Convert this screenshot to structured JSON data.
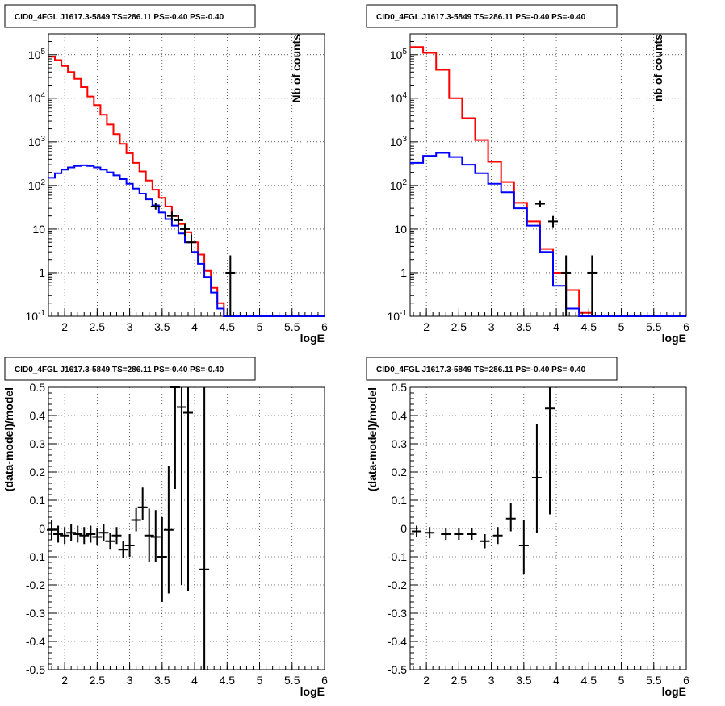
{
  "chart_data": [
    {
      "type": "step",
      "title": "CID0_4FGL J1617.3-5849 TS=286.11 PS=-0.40 PS=-0.40",
      "xlabel": "logE",
      "ylabel": "Nb of counts",
      "xlim": [
        1.75,
        6.0
      ],
      "ylim": [
        0.1,
        300000
      ],
      "yscale": "log",
      "grid": true,
      "xticks": [
        "2",
        "2.5",
        "3",
        "3.5",
        "4",
        "4.5",
        "5",
        "5.5",
        "6"
      ],
      "yticks": [
        "10^-1",
        "1",
        "10",
        "10^2",
        "10^3",
        "10^4",
        "10^5"
      ],
      "bin_edges": [
        1.75,
        1.85,
        1.95,
        2.05,
        2.15,
        2.25,
        2.35,
        2.45,
        2.55,
        2.65,
        2.75,
        2.85,
        2.95,
        3.05,
        3.15,
        3.25,
        3.35,
        3.45,
        3.55,
        3.65,
        3.75,
        3.85,
        3.95,
        4.05,
        4.15,
        4.25,
        4.35,
        4.45,
        4.55,
        4.65,
        4.75,
        4.85,
        4.95,
        5.05,
        5.15,
        5.25,
        5.35,
        5.45,
        5.55,
        5.65,
        5.75,
        5.85,
        5.95,
        6.0
      ],
      "series": [
        {
          "color": "#ff0000",
          "values": [
            90000,
            75000,
            55000,
            40000,
            28000,
            18000,
            11000,
            7000,
            4200,
            2500,
            1500,
            900,
            550,
            330,
            210,
            130,
            80,
            52,
            33,
            20,
            13,
            8.5,
            5,
            2.6,
            1.1,
            0.45,
            0.2,
            0.1,
            0.1,
            0.1,
            0.1,
            0.1,
            0.1,
            0.1,
            0.1,
            0.1,
            0.1,
            0.1,
            0.1,
            0.1,
            0.1,
            0.1,
            0.1
          ]
        },
        {
          "color": "#0000ff",
          "values": [
            150,
            190,
            230,
            260,
            280,
            290,
            280,
            260,
            230,
            200,
            170,
            140,
            110,
            85,
            65,
            48,
            35,
            24,
            17,
            12,
            8,
            5,
            3,
            1.6,
            0.8,
            0.35,
            0.15,
            0.1,
            0.1,
            0.1,
            0.1,
            0.1,
            0.1,
            0.1,
            0.1,
            0.1,
            0.1,
            0.1,
            0.1,
            0.1,
            0.1,
            0.1,
            0.1
          ]
        }
      ],
      "points": [
        {
          "x": 3.4,
          "y": 33,
          "ylo": 28,
          "yhi": 39
        },
        {
          "x": 3.65,
          "y": 20,
          "ylo": 16,
          "yhi": 25
        },
        {
          "x": 3.75,
          "y": 16,
          "ylo": 12,
          "yhi": 21
        },
        {
          "x": 3.85,
          "y": 10,
          "ylo": 7,
          "yhi": 13
        },
        {
          "x": 3.95,
          "y": 5,
          "ylo": 3,
          "yhi": 7.5
        },
        {
          "x": 4.55,
          "y": 1,
          "ylo": 0.1,
          "yhi": 2.5
        }
      ]
    },
    {
      "type": "step",
      "title": "CID0_4FGL J1617.3-5849 TS=286.11 PS=-0.40 PS=-0.40",
      "xlabel": "logE",
      "ylabel": "nb of counts",
      "xlim": [
        1.75,
        6.0
      ],
      "ylim": [
        0.1,
        300000
      ],
      "yscale": "log",
      "grid": true,
      "xticks": [
        "2",
        "2.5",
        "3",
        "3.5",
        "4",
        "4.5",
        "5",
        "5.5",
        "6"
      ],
      "yticks": [
        "10^-1",
        "1",
        "10",
        "10^2",
        "10^3",
        "10^4",
        "10^5"
      ],
      "bin_edges": [
        1.75,
        1.95,
        2.15,
        2.35,
        2.55,
        2.75,
        2.95,
        3.15,
        3.35,
        3.55,
        3.75,
        3.95,
        4.15,
        4.35,
        4.55,
        4.75,
        4.95,
        5.15,
        5.35,
        5.55,
        5.75,
        5.95,
        6.0
      ],
      "series": [
        {
          "color": "#ff0000",
          "values": [
            150000,
            110000,
            45000,
            10000,
            3500,
            1100,
            350,
            120,
            40,
            15,
            3.5,
            1.0,
            0.4,
            0.12,
            0.1,
            0.1,
            0.1,
            0.1,
            0.1,
            0.1,
            0.1,
            0.1
          ]
        },
        {
          "color": "#0000ff",
          "values": [
            330,
            480,
            560,
            450,
            300,
            190,
            110,
            70,
            30,
            12,
            3,
            0.5,
            0.15,
            0.1,
            0.1,
            0.1,
            0.1,
            0.1,
            0.1,
            0.1,
            0.1,
            0.1
          ]
        }
      ],
      "points": [
        {
          "x": 3.75,
          "y": 38,
          "ylo": 32,
          "yhi": 45
        },
        {
          "x": 3.95,
          "y": 15,
          "ylo": 11,
          "yhi": 20
        },
        {
          "x": 4.15,
          "y": 1,
          "ylo": 0.1,
          "yhi": 2.5
        },
        {
          "x": 4.55,
          "y": 1,
          "ylo": 0.1,
          "yhi": 2.5
        }
      ]
    },
    {
      "type": "scatter",
      "title": "CID0_4FGL J1617.3-5849 TS=286.11 PS=-0.40 PS=-0.40",
      "xlabel": "logE",
      "ylabel": "(data-model)/model",
      "xlim": [
        1.75,
        6.0
      ],
      "ylim": [
        -0.5,
        0.5
      ],
      "grid": true,
      "xticks": [
        "2",
        "2.5",
        "3",
        "3.5",
        "4",
        "4.5",
        "5",
        "5.5",
        "6"
      ],
      "yticks": [
        "-0.5",
        "-0.4",
        "-0.3",
        "-0.2",
        "-0.1",
        "0",
        "0.1",
        "0.2",
        "0.3",
        "0.4",
        "0.5"
      ],
      "points": [
        {
          "x": 1.8,
          "y": -0.005,
          "ylo": -0.04,
          "yhi": 0.03
        },
        {
          "x": 1.9,
          "y": -0.02,
          "ylo": -0.05,
          "yhi": 0.01
        },
        {
          "x": 2.0,
          "y": -0.025,
          "ylo": -0.055,
          "yhi": 0.005
        },
        {
          "x": 2.1,
          "y": -0.015,
          "ylo": -0.045,
          "yhi": 0.015
        },
        {
          "x": 2.2,
          "y": -0.02,
          "ylo": -0.05,
          "yhi": 0.01
        },
        {
          "x": 2.3,
          "y": -0.025,
          "ylo": -0.055,
          "yhi": 0.005
        },
        {
          "x": 2.4,
          "y": -0.02,
          "ylo": -0.05,
          "yhi": 0.01
        },
        {
          "x": 2.5,
          "y": -0.03,
          "ylo": -0.06,
          "yhi": 0.0
        },
        {
          "x": 2.6,
          "y": -0.015,
          "ylo": -0.045,
          "yhi": 0.015
        },
        {
          "x": 2.7,
          "y": -0.045,
          "ylo": -0.075,
          "yhi": -0.015
        },
        {
          "x": 2.8,
          "y": -0.025,
          "ylo": -0.055,
          "yhi": 0.005
        },
        {
          "x": 2.9,
          "y": -0.075,
          "ylo": -0.105,
          "yhi": -0.045
        },
        {
          "x": 3.0,
          "y": -0.06,
          "ylo": -0.1,
          "yhi": -0.02
        },
        {
          "x": 3.1,
          "y": 0.03,
          "ylo": -0.01,
          "yhi": 0.075
        },
        {
          "x": 3.2,
          "y": 0.075,
          "ylo": 0.03,
          "yhi": 0.145
        },
        {
          "x": 3.3,
          "y": -0.025,
          "ylo": -0.12,
          "yhi": 0.07
        },
        {
          "x": 3.4,
          "y": -0.03,
          "ylo": -0.12,
          "yhi": 0.065
        },
        {
          "x": 3.5,
          "y": -0.1,
          "ylo": -0.26,
          "yhi": 0.04
        },
        {
          "x": 3.6,
          "y": -0.005,
          "ylo": -0.23,
          "yhi": 0.22
        },
        {
          "x": 3.7,
          "y": 0.5,
          "ylo": 0.14,
          "yhi": 0.5
        },
        {
          "x": 3.8,
          "y": 0.43,
          "ylo": -0.2,
          "yhi": 0.5
        },
        {
          "x": 3.9,
          "y": 0.41,
          "ylo": -0.22,
          "yhi": 0.5
        },
        {
          "x": 4.15,
          "y": -0.145,
          "ylo": -0.5,
          "yhi": 0.5
        }
      ]
    },
    {
      "type": "scatter",
      "title": "CID0_4FGL J1617.3-5849 TS=286.11 PS=-0.40 PS=-0.40",
      "xlabel": "logE",
      "ylabel": "(data-model)/model",
      "xlim": [
        1.75,
        6.0
      ],
      "ylim": [
        -0.5,
        0.5
      ],
      "grid": true,
      "xticks": [
        "2",
        "2.5",
        "3",
        "3.5",
        "4",
        "4.5",
        "5",
        "5.5",
        "6"
      ],
      "yticks": [
        "-0.5",
        "-0.4",
        "-0.3",
        "-0.2",
        "-0.1",
        "0",
        "0.1",
        "0.2",
        "0.3",
        "0.4",
        "0.5"
      ],
      "points": [
        {
          "x": 1.85,
          "y": -0.01,
          "ylo": -0.03,
          "yhi": 0.01
        },
        {
          "x": 2.05,
          "y": -0.015,
          "ylo": -0.035,
          "yhi": 0.005
        },
        {
          "x": 2.3,
          "y": -0.02,
          "ylo": -0.04,
          "yhi": 0.0
        },
        {
          "x": 2.5,
          "y": -0.02,
          "ylo": -0.04,
          "yhi": 0.0
        },
        {
          "x": 2.7,
          "y": -0.02,
          "ylo": -0.04,
          "yhi": 0.0
        },
        {
          "x": 2.9,
          "y": -0.045,
          "ylo": -0.07,
          "yhi": -0.02
        },
        {
          "x": 3.1,
          "y": -0.025,
          "ylo": -0.055,
          "yhi": 0.005
        },
        {
          "x": 3.3,
          "y": 0.035,
          "ylo": -0.01,
          "yhi": 0.09
        },
        {
          "x": 3.5,
          "y": -0.06,
          "ylo": -0.16,
          "yhi": 0.03
        },
        {
          "x": 3.7,
          "y": 0.18,
          "ylo": -0.015,
          "yhi": 0.37
        },
        {
          "x": 3.9,
          "y": 0.425,
          "ylo": 0.05,
          "yhi": 0.5
        }
      ]
    }
  ]
}
